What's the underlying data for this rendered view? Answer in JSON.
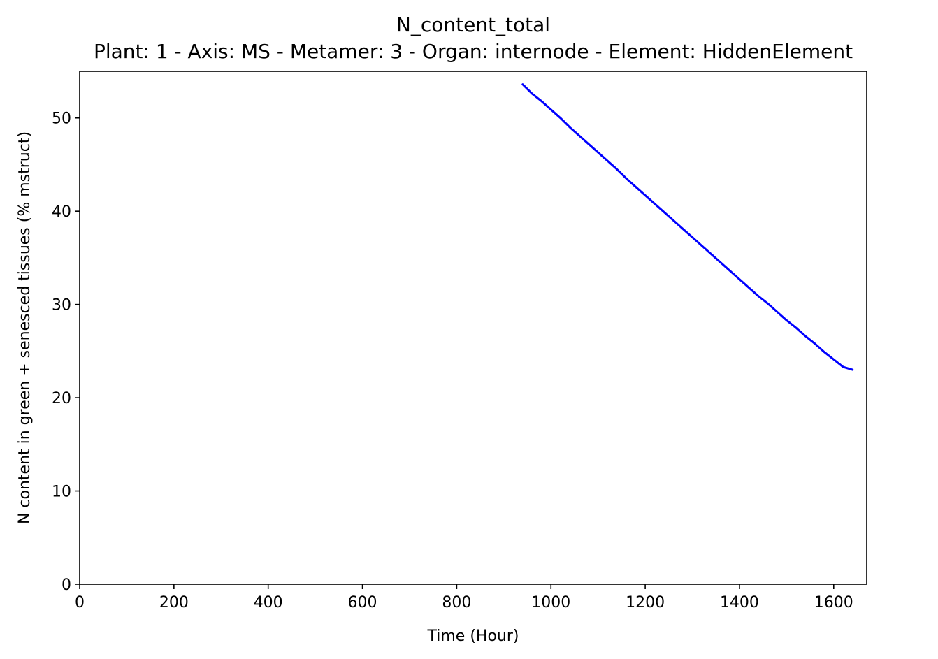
{
  "chart_data": {
    "type": "line",
    "title": "N_content_total",
    "subtitle": "Plant: 1 - Axis: MS - Metamer: 3 - Organ: internode - Element: HiddenElement",
    "xlabel": "Time (Hour)",
    "ylabel": "N content in green + senesced tissues (% mstruct)",
    "xlim": [
      0,
      1670
    ],
    "ylim": [
      0,
      55
    ],
    "xticks": [
      0,
      200,
      400,
      600,
      800,
      1000,
      1200,
      1400,
      1600
    ],
    "yticks": [
      0,
      10,
      20,
      30,
      40,
      50
    ],
    "grid": false,
    "series": [
      {
        "color": "#0000ff",
        "x": [
          940,
          960,
          980,
          1000,
          1020,
          1040,
          1060,
          1080,
          1100,
          1120,
          1140,
          1160,
          1180,
          1200,
          1220,
          1240,
          1260,
          1280,
          1300,
          1320,
          1340,
          1360,
          1380,
          1400,
          1420,
          1440,
          1460,
          1480,
          1500,
          1520,
          1540,
          1560,
          1580,
          1600,
          1620,
          1640
        ],
        "y": [
          53.6,
          52.6,
          51.8,
          50.9,
          50.0,
          49.0,
          48.1,
          47.2,
          46.3,
          45.4,
          44.5,
          43.5,
          42.6,
          41.7,
          40.8,
          39.9,
          39.0,
          38.1,
          37.2,
          36.3,
          35.4,
          34.5,
          33.6,
          32.7,
          31.8,
          30.9,
          30.1,
          29.2,
          28.3,
          27.5,
          26.6,
          25.8,
          24.9,
          24.1,
          23.3,
          23.0
        ]
      }
    ]
  }
}
